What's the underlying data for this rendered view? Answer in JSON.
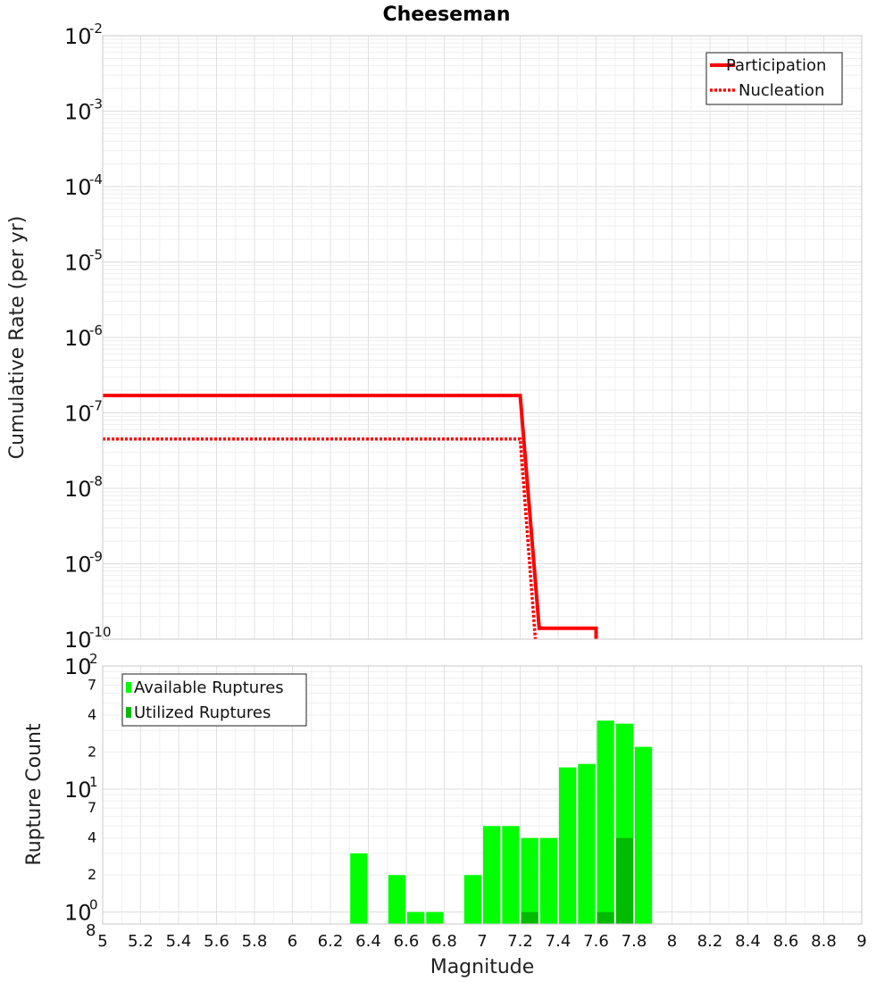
{
  "chart_data": [
    {
      "type": "line",
      "title": "Cheeseman",
      "xlabel": "Magnitude",
      "ylabel": "Cumulative Rate (per yr)",
      "xlim": [
        5,
        9
      ],
      "ylim": [
        1e-10,
        0.01
      ],
      "yscale": "log",
      "grid": true,
      "legend_position": "top-right",
      "y_tick_bases": [
        "10",
        "10",
        "10",
        "10",
        "10",
        "10",
        "10",
        "10",
        "10"
      ],
      "y_tick_exponents": [
        "-2",
        "-3",
        "-4",
        "-5",
        "-6",
        "-7",
        "-8",
        "-9",
        "-10"
      ],
      "series": [
        {
          "name": "Participation",
          "style": "solid",
          "color": "#ff0000",
          "points": [
            [
              5.0,
              1.7e-07
            ],
            [
              7.2,
              1.7e-07
            ],
            [
              7.3,
              1.4e-10
            ],
            [
              7.6,
              1.4e-10
            ],
            [
              7.6,
              1e-10
            ]
          ]
        },
        {
          "name": "Nucleation",
          "style": "dotted",
          "color": "#ff0000",
          "points": [
            [
              5.0,
              4.5e-08
            ],
            [
              7.2,
              4.5e-08
            ],
            [
              7.28,
              1e-10
            ]
          ]
        }
      ]
    },
    {
      "type": "bar",
      "xlabel": "Magnitude",
      "ylabel": "Rupture Count",
      "xlim": [
        5,
        9
      ],
      "ylim": [
        0.8,
        100
      ],
      "yscale": "log",
      "grid": true,
      "legend_position": "top-left",
      "x_ticks": [
        "5",
        "5.2",
        "5.4",
        "5.6",
        "5.8",
        "6",
        "6.2",
        "6.4",
        "6.6",
        "6.8",
        "7",
        "7.2",
        "7.4",
        "7.6",
        "7.8",
        "8",
        "8.2",
        "8.4",
        "8.6",
        "8.8",
        "9"
      ],
      "y_major_ticks": [
        {
          "base": "10",
          "exp": "2",
          "value": 100
        },
        {
          "base": "10",
          "exp": "1",
          "value": 10
        },
        {
          "base": "10",
          "exp": "0",
          "value": 1
        }
      ],
      "y_minor_labels": [
        {
          "label": "7",
          "value": 70
        },
        {
          "label": "4",
          "value": 40
        },
        {
          "label": "2",
          "value": 20
        },
        {
          "label": "7",
          "value": 7
        },
        {
          "label": "4",
          "value": 4
        },
        {
          "label": "2",
          "value": 2
        },
        {
          "label": "8",
          "value": 0.8
        }
      ],
      "bin_width": 0.1,
      "series": [
        {
          "name": "Available Ruptures",
          "color": "#00ff00",
          "x": [
            6.35,
            6.55,
            6.65,
            6.75,
            6.95,
            7.05,
            7.15,
            7.25,
            7.35,
            7.45,
            7.55,
            7.65,
            7.75,
            7.85
          ],
          "values": [
            3,
            2,
            1,
            1,
            2,
            5,
            5,
            4,
            4,
            15,
            16,
            36,
            34,
            22
          ]
        },
        {
          "name": "Utilized Ruptures",
          "color": "#00bb00",
          "x": [
            7.25,
            7.65,
            7.75
          ],
          "values": [
            1,
            1,
            4
          ]
        }
      ]
    }
  ]
}
